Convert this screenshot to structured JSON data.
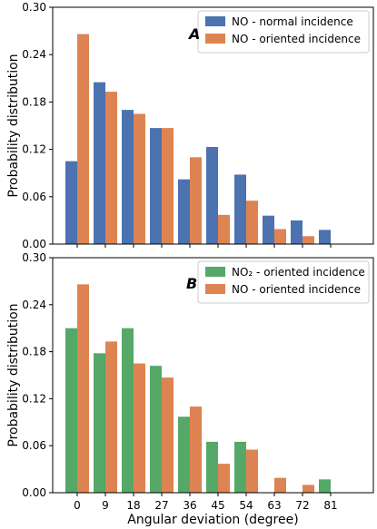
{
  "chart_data": [
    {
      "type": "bar",
      "panel_label": "A",
      "categories": [
        "0",
        "9",
        "18",
        "27",
        "36",
        "45",
        "54",
        "63",
        "72",
        "81"
      ],
      "series": [
        {
          "name": "NO - normal incidence",
          "color": "#4c72b0",
          "values": [
            0.105,
            0.205,
            0.17,
            0.147,
            0.082,
            0.123,
            0.088,
            0.036,
            0.03,
            0.018
          ]
        },
        {
          "name": "NO - oriented incidence",
          "color": "#dd8452",
          "values": [
            0.266,
            0.193,
            0.165,
            0.147,
            0.11,
            0.037,
            0.055,
            0.019,
            0.01,
            0.0
          ]
        }
      ],
      "ylabel": "Probability distribution",
      "ylim": [
        0,
        0.3
      ],
      "yticks": [
        "0.00",
        "0.06",
        "0.12",
        "0.18",
        "0.24",
        "0.30"
      ],
      "legend": "top-right"
    },
    {
      "type": "bar",
      "panel_label": "B",
      "categories": [
        "0",
        "9",
        "18",
        "27",
        "36",
        "45",
        "54",
        "63",
        "72",
        "81"
      ],
      "series": [
        {
          "name": "NO₂ - oriented incidence",
          "color": "#55a868",
          "values": [
            0.21,
            0.178,
            0.21,
            0.162,
            0.097,
            0.065,
            0.065,
            0.0,
            0.0,
            0.017
          ]
        },
        {
          "name": "NO - oriented incidence",
          "color": "#dd8452",
          "values": [
            0.266,
            0.193,
            0.165,
            0.147,
            0.11,
            0.037,
            0.055,
            0.019,
            0.01,
            0.0
          ]
        }
      ],
      "xlabel": "Angular deviation (degree)",
      "ylabel": "Probability distribution",
      "ylim": [
        0,
        0.3
      ],
      "yticks": [
        "0.00",
        "0.06",
        "0.12",
        "0.18",
        "0.24",
        "0.30"
      ],
      "legend": "top-right"
    }
  ]
}
